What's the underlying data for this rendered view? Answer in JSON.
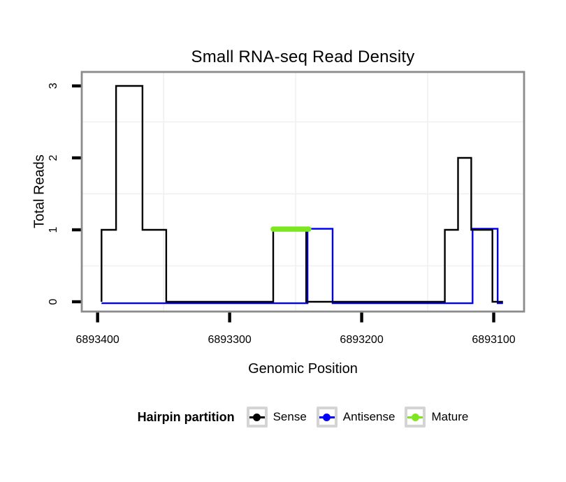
{
  "chart_data": {
    "type": "line",
    "subtype": "step",
    "title": "Small RNA-seq Read Density",
    "xlabel": "Genomic Position",
    "ylabel": "Total Reads",
    "x_reversed": true,
    "xlim": [
      6893412,
      6893077
    ],
    "ylim": [
      -0.136,
      3.194
    ],
    "x_ticks": [
      {
        "value": 6893400,
        "label": "6893400"
      },
      {
        "value": 6893300,
        "label": "6893300"
      },
      {
        "value": 6893200,
        "label": "6893200"
      },
      {
        "value": 6893100,
        "label": "6893100"
      }
    ],
    "y_ticks": [
      {
        "value": 0,
        "label": "0"
      },
      {
        "value": 1,
        "label": "1"
      },
      {
        "value": 2,
        "label": "2"
      },
      {
        "value": 3,
        "label": "3"
      }
    ],
    "x_minor_gridlines": [
      6893350,
      6893250,
      6893150
    ],
    "y_minor_gridlines": [
      0.5,
      1.5,
      2.5
    ],
    "grid": "minor-only",
    "legend_position": "bottom",
    "series": [
      {
        "name": "Sense",
        "color": "#000000",
        "style": "step",
        "regions": [
          {
            "start": 6893397,
            "end": 6893386,
            "reads": 1
          },
          {
            "start": 6893386,
            "end": 6893366,
            "reads": 3
          },
          {
            "start": 6893366,
            "end": 6893348,
            "reads": 1
          },
          {
            "start": 6893348,
            "end": 6893267,
            "reads": 0
          },
          {
            "start": 6893267,
            "end": 6893242,
            "reads": 1
          },
          {
            "start": 6893242,
            "end": 6893137,
            "reads": 0
          },
          {
            "start": 6893137,
            "end": 6893127,
            "reads": 1
          },
          {
            "start": 6893127,
            "end": 6893117,
            "reads": 2
          },
          {
            "start": 6893117,
            "end": 6893101,
            "reads": 1
          },
          {
            "start": 6893101,
            "end": 6893093,
            "reads": 0
          }
        ]
      },
      {
        "name": "Antisense",
        "color": "#0000FF",
        "style": "step",
        "regions": [
          {
            "start": 6893397,
            "end": 6893241,
            "reads": 0
          },
          {
            "start": 6893241,
            "end": 6893222,
            "reads": 1
          },
          {
            "start": 6893222,
            "end": 6893116,
            "reads": 0
          },
          {
            "start": 6893116,
            "end": 6893097,
            "reads": 1
          },
          {
            "start": 6893097,
            "end": 6893093,
            "reads": 0
          }
        ]
      },
      {
        "name": "Mature",
        "color": "#7CE61E",
        "style": "segment",
        "reads": 1,
        "start": 6893267,
        "end": 6893240
      }
    ]
  },
  "legend": {
    "title": "Hairpin partition",
    "items": [
      {
        "label": "Sense",
        "color": "#000000"
      },
      {
        "label": "Antisense",
        "color": "#0000FF"
      },
      {
        "label": "Mature",
        "color": "#7CE61E"
      }
    ]
  },
  "colors": {
    "background": "#FFFFFF",
    "panel_border": "#8B8B8B",
    "tick": "#000000",
    "minor_gridline": "#F0F0F0",
    "legend_key_border": "#D4D4D4",
    "text": "#000000"
  }
}
